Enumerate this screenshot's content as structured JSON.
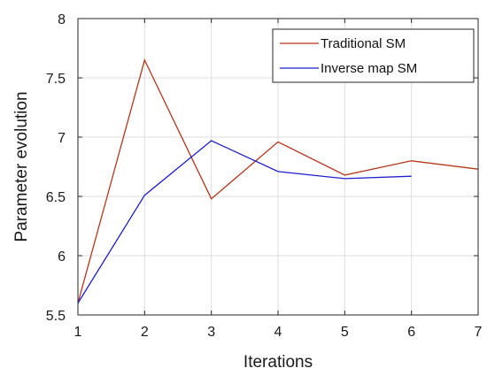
{
  "chart_data": {
    "type": "line",
    "title": "",
    "xlabel": "Iterations",
    "ylabel": "Parameter evolution",
    "xlim": [
      1,
      7
    ],
    "ylim": [
      5.5,
      8
    ],
    "xticks": [
      1,
      2,
      3,
      4,
      5,
      6,
      7
    ],
    "yticks": [
      5.5,
      6,
      6.5,
      7,
      7.5,
      8
    ],
    "xtick_labels": [
      "1",
      "2",
      "3",
      "4",
      "5",
      "6",
      "7"
    ],
    "ytick_labels": [
      "5.5",
      "6",
      "6.5",
      "7",
      "7.5",
      "8"
    ],
    "grid": true,
    "legend_position": "top-right",
    "series": [
      {
        "name": "Traditional SM",
        "color": "#b5361c",
        "x": [
          1,
          2,
          3,
          4,
          5,
          6,
          7
        ],
        "y": [
          5.6,
          7.65,
          6.48,
          6.96,
          6.68,
          6.8,
          6.73
        ]
      },
      {
        "name": "Inverse map SM",
        "color": "#1f1fcc",
        "x": [
          1,
          2,
          3,
          4,
          5,
          6
        ],
        "y": [
          5.6,
          6.51,
          6.97,
          6.71,
          6.65,
          6.67
        ]
      }
    ]
  }
}
